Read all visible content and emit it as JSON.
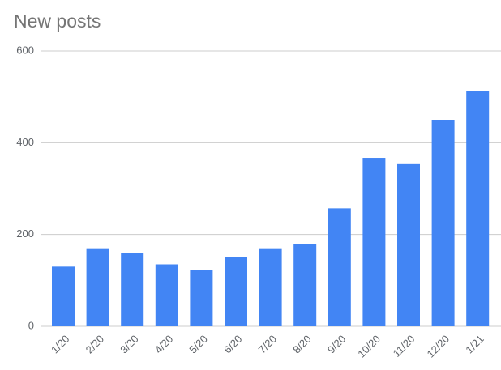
{
  "chart_data": {
    "type": "bar",
    "title": "New posts",
    "categories": [
      "1/20",
      "2/20",
      "3/20",
      "4/20",
      "5/20",
      "6/20",
      "7/20",
      "8/20",
      "9/20",
      "10/20",
      "11/20",
      "12/20",
      "1/21"
    ],
    "values": [
      130,
      170,
      160,
      135,
      122,
      150,
      170,
      180,
      257,
      367,
      355,
      450,
      512
    ],
    "color": "#4285f4",
    "ylim": [
      0,
      600
    ],
    "yticks": [
      0,
      200,
      400,
      600
    ],
    "grid": true
  }
}
